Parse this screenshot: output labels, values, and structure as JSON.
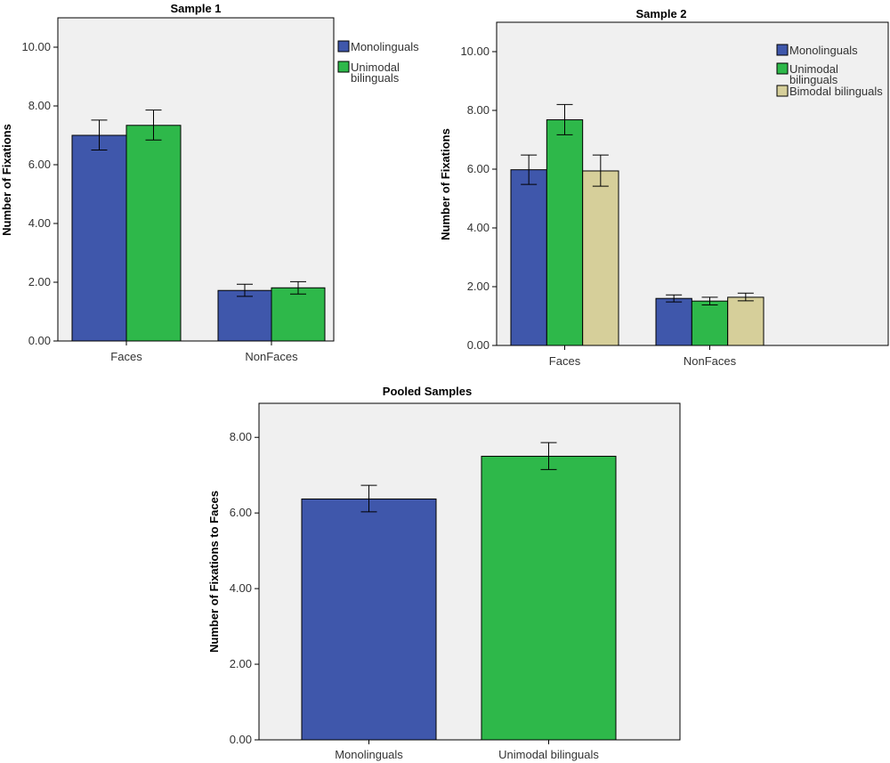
{
  "colors": {
    "Monolinguals": "#3f57ab",
    "Unimodal bilinguals": "#2eb84a",
    "Bimodal bilinguals": "#d6cf9a",
    "plot_bg": "#f0f0f0",
    "border": "#000000"
  },
  "chart_data": [
    {
      "id": "sample1",
      "type": "bar",
      "title": "Sample 1",
      "ylabel": "Number of Fixations",
      "xlabel": "",
      "ylim": [
        0,
        11
      ],
      "yticks": [
        "0.00",
        "2.00",
        "4.00",
        "6.00",
        "8.00",
        "10.00"
      ],
      "ytick_values": [
        0,
        2,
        4,
        6,
        8,
        10
      ],
      "categories": [
        "Faces",
        "NonFaces"
      ],
      "series": [
        {
          "name": "Monolinguals",
          "values": [
            7.0,
            1.72
          ],
          "err_low": [
            6.5,
            1.52
          ],
          "err_high": [
            7.52,
            1.93
          ]
        },
        {
          "name": "Unimodal bilinguals",
          "values": [
            7.34,
            1.81
          ],
          "err_low": [
            6.84,
            1.6
          ],
          "err_high": [
            7.86,
            2.02
          ]
        }
      ],
      "legend": [
        {
          "series": "Monolinguals",
          "lines": [
            "Monolinguals"
          ]
        },
        {
          "series": "Unimodal bilinguals",
          "lines": [
            "Unimodal",
            "bilinguals"
          ]
        }
      ]
    },
    {
      "id": "sample2",
      "type": "bar",
      "title": "Sample 2",
      "ylabel": "Number of Fixations",
      "xlabel": "",
      "ylim": [
        0,
        11
      ],
      "yticks": [
        "0.00",
        "2.00",
        "4.00",
        "6.00",
        "8.00",
        "10.00"
      ],
      "ytick_values": [
        0,
        2,
        4,
        6,
        8,
        10
      ],
      "categories": [
        "Faces",
        "NonFaces"
      ],
      "series": [
        {
          "name": "Monolinguals",
          "values": [
            5.98,
            1.6
          ],
          "err_low": [
            5.48,
            1.48
          ],
          "err_high": [
            6.48,
            1.72
          ]
        },
        {
          "name": "Unimodal bilinguals",
          "values": [
            7.68,
            1.51
          ],
          "err_low": [
            7.17,
            1.38
          ],
          "err_high": [
            8.2,
            1.64
          ]
        },
        {
          "name": "Bimodal bilinguals",
          "values": [
            5.94,
            1.64
          ],
          "err_low": [
            5.42,
            1.52
          ],
          "err_high": [
            6.48,
            1.78
          ]
        }
      ],
      "legend": [
        {
          "series": "Monolinguals",
          "lines": [
            "Monolinguals"
          ]
        },
        {
          "series": "Unimodal bilinguals",
          "lines": [
            "Unimodal",
            "bilinguals"
          ]
        },
        {
          "series": "Bimodal bilinguals",
          "lines": [
            "Bimodal bilinguals"
          ]
        }
      ]
    },
    {
      "id": "pooled",
      "type": "bar",
      "title": "Pooled Samples",
      "ylabel": "Number of Fixations to Faces",
      "xlabel": "",
      "ylim": [
        0,
        8.9
      ],
      "yticks": [
        "0.00",
        "2.00",
        "4.00",
        "6.00",
        "8.00"
      ],
      "ytick_values": [
        0,
        2,
        4,
        6,
        8
      ],
      "categories": [
        "Monolinguals",
        "Unimodal bilinguals"
      ],
      "values": [
        6.37,
        7.5
      ],
      "err_low": [
        6.03,
        7.15
      ],
      "err_high": [
        6.73,
        7.86
      ],
      "bar_series": [
        "Monolinguals",
        "Unimodal bilinguals"
      ]
    }
  ]
}
